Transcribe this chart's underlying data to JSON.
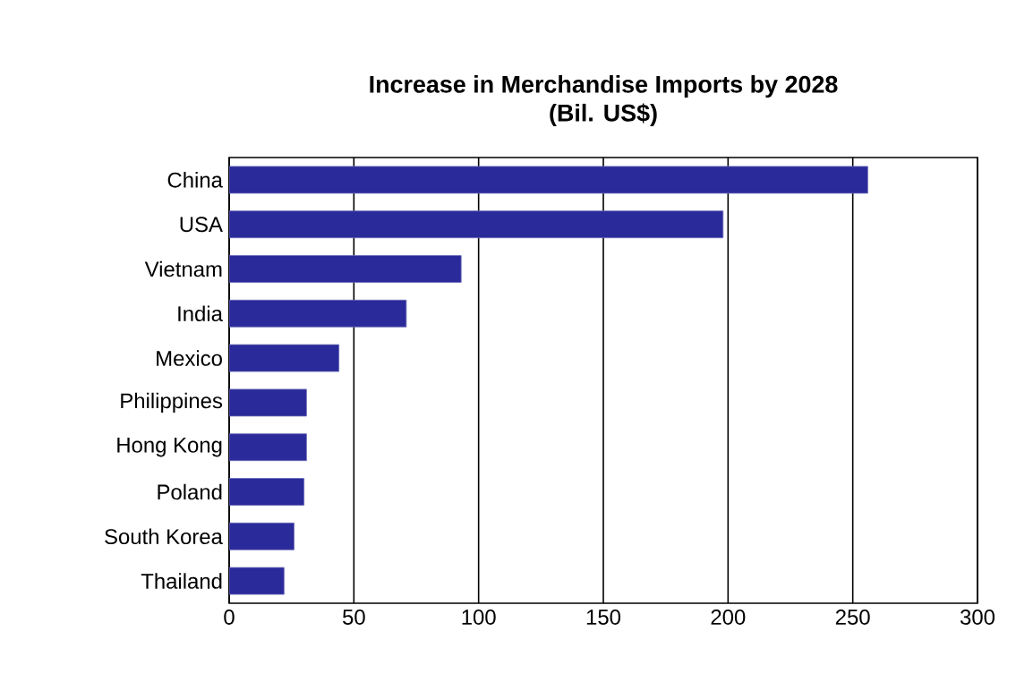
{
  "chart_data": {
    "type": "bar",
    "orientation": "horizontal",
    "title": "Increase in Merchandise Imports by 2028",
    "subtitle": "(Bil. US$)",
    "categories": [
      "China",
      "USA",
      "Vietnam",
      "India",
      "Mexico",
      "Philippines",
      "Hong Kong",
      "Poland",
      "South Korea",
      "Thailand"
    ],
    "values": [
      256,
      198,
      93,
      71,
      44,
      31,
      31,
      30,
      26,
      22
    ],
    "color": "#2a2a9a",
    "xlim": [
      0,
      300
    ],
    "xticks": [
      0,
      50,
      100,
      150,
      200,
      250,
      300
    ],
    "grid": "x"
  }
}
